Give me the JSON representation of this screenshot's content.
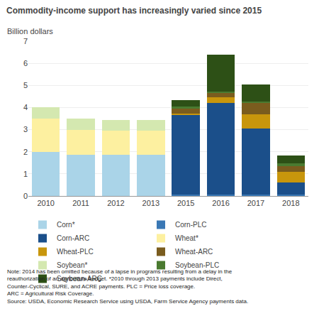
{
  "chart_data": {
    "type": "bar",
    "title": "Commodity-income support has increasingly varied since 2015",
    "ylabel": "Billion dollars",
    "categories": [
      "2010",
      "2011",
      "2012",
      "2013",
      "2015",
      "2016",
      "2017",
      "2018"
    ],
    "series": [
      {
        "name": "Corn*",
        "color": "#aad4e8",
        "values": [
          2.0,
          1.85,
          1.85,
          1.85,
          0.0,
          0.0,
          0.0,
          0.0
        ]
      },
      {
        "name": "Corn-PLC",
        "color": "#3a78b5",
        "values": [
          0.0,
          0.0,
          0.0,
          0.0,
          0.05,
          0.05,
          0.05,
          0.05
        ]
      },
      {
        "name": "Corn-ARC",
        "color": "#1b4f8a",
        "values": [
          0.0,
          0.0,
          0.0,
          0.0,
          3.6,
          4.15,
          3.0,
          0.55
        ]
      },
      {
        "name": "Wheat*",
        "color": "#fdf0a0",
        "values": [
          1.5,
          1.15,
          1.1,
          1.1,
          0.0,
          0.0,
          0.0,
          0.0
        ]
      },
      {
        "name": "Wheat-PLC",
        "color": "#c8960c",
        "values": [
          0.0,
          0.0,
          0.0,
          0.0,
          0.08,
          0.25,
          0.65,
          0.5
        ]
      },
      {
        "name": "Wheat-ARC",
        "color": "#7a5c1e",
        "values": [
          0.0,
          0.0,
          0.0,
          0.0,
          0.22,
          0.2,
          0.52,
          0.25
        ]
      },
      {
        "name": "Soybean*",
        "color": "#d4e8b0",
        "values": [
          0.5,
          0.5,
          0.5,
          0.5,
          0.0,
          0.0,
          0.0,
          0.0
        ]
      },
      {
        "name": "Soybean-PLC",
        "color": "#4a7a30",
        "values": [
          0.0,
          0.0,
          0.0,
          0.0,
          0.1,
          0.08,
          0.05,
          0.12
        ]
      },
      {
        "name": "Soybean-ARC",
        "color": "#2d5016",
        "values": [
          0.0,
          0.0,
          0.0,
          0.0,
          0.3,
          1.65,
          0.78,
          0.35
        ]
      }
    ],
    "stacked": true,
    "ylim": [
      0,
      7
    ],
    "yticks": [
      0,
      1,
      2,
      3,
      4,
      5,
      6,
      7
    ],
    "grid": true,
    "legend": "bottom",
    "annotations": [
      "Note: 2014 has been omitted because of a lapse in programs resulting from a delay in the",
      "reauthorization of an agriculture budget. *2010 through 2013 payments include Direct,",
      "Counter-Cyclical, SURE, and ACRE payments. PLC = Price loss coverage.",
      "ARC = Agricultural Risk Coverage.",
      "Source: USDA, Economic Research Service using USDA, Farm Service Agency payments data."
    ]
  }
}
